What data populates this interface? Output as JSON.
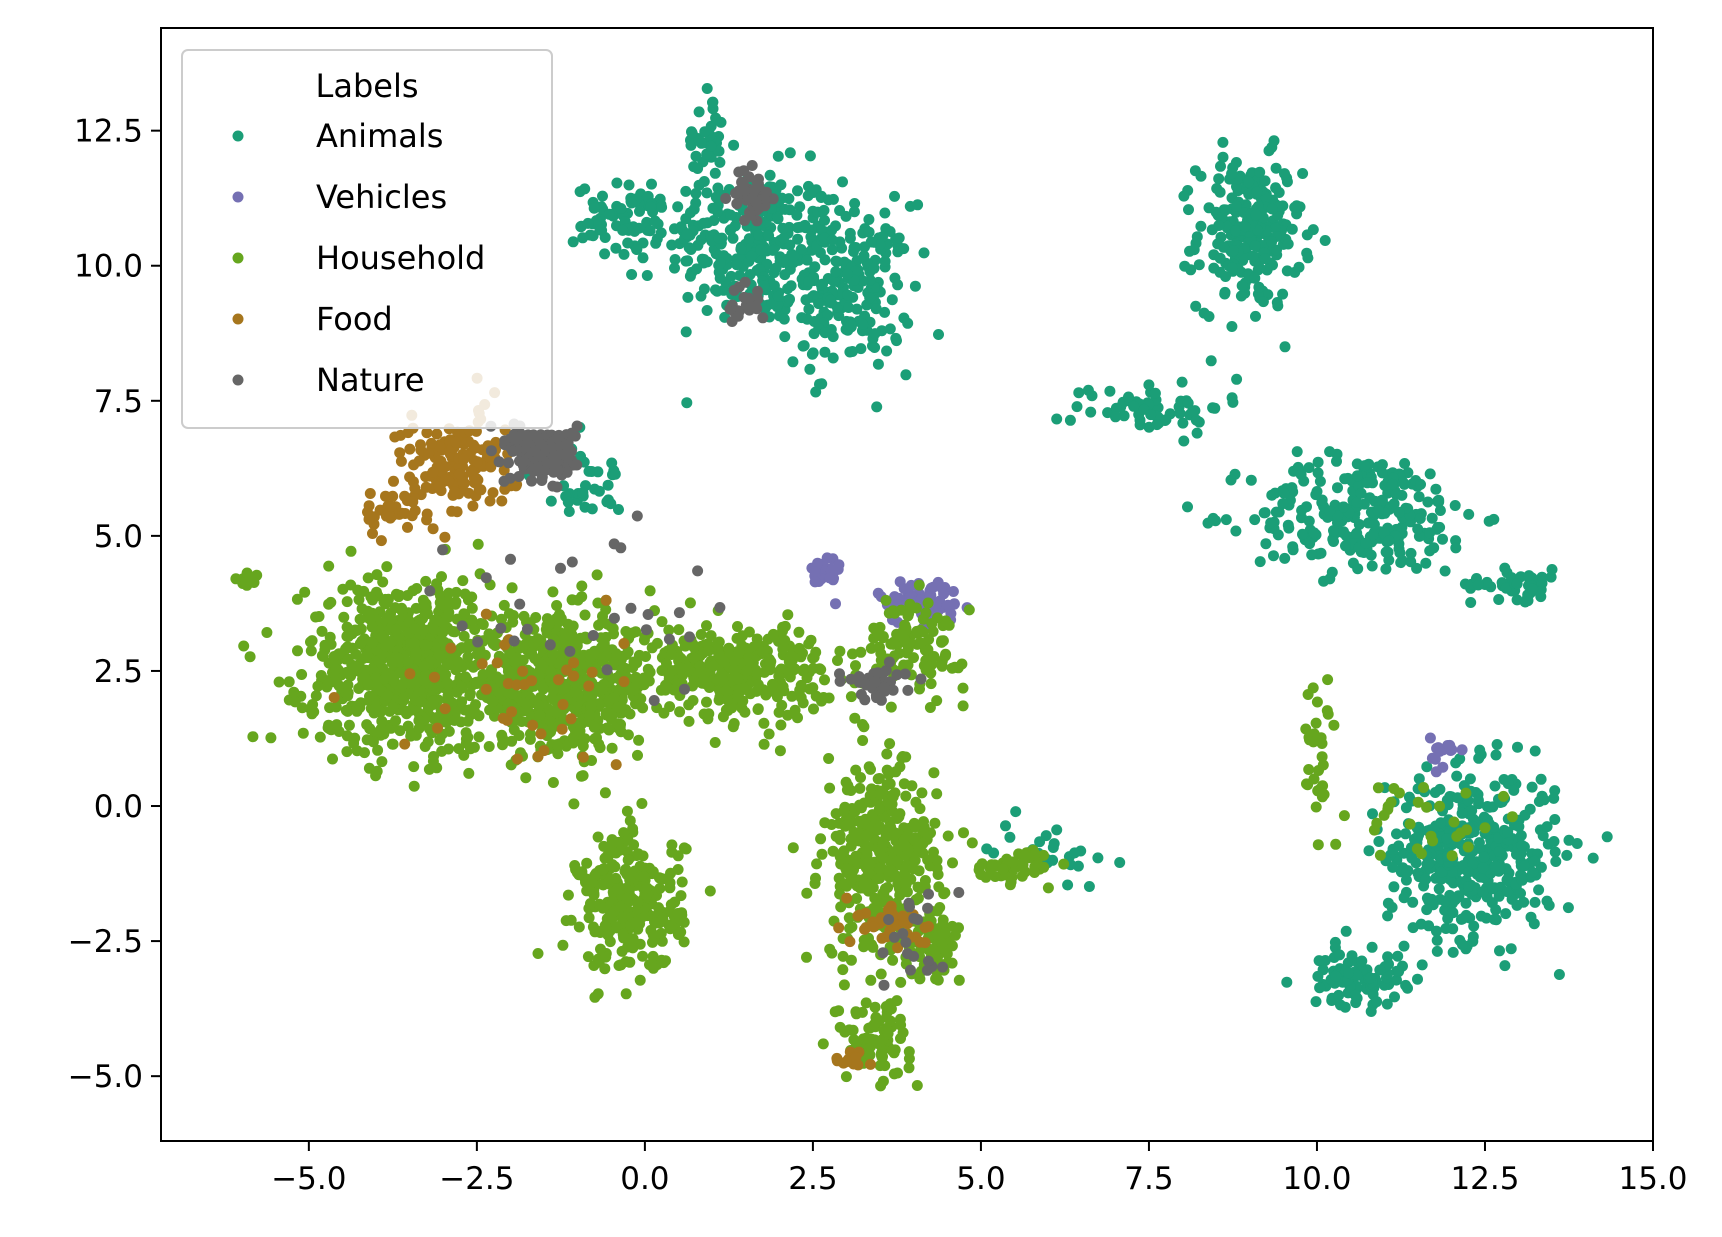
{
  "chart_data": {
    "type": "scatter",
    "title": "",
    "xlabel": "",
    "ylabel": "",
    "xlim": [
      -7.2,
      15.0
    ],
    "ylim": [
      -6.2,
      14.4
    ],
    "grid": false,
    "legend": {
      "title": "Labels",
      "placement": "top-left"
    },
    "x_ticks": [
      {
        "value": -5.0,
        "label": "−5.0"
      },
      {
        "value": -2.5,
        "label": "−2.5"
      },
      {
        "value": 0.0,
        "label": "0.0"
      },
      {
        "value": 2.5,
        "label": "2.5"
      },
      {
        "value": 5.0,
        "label": "5.0"
      },
      {
        "value": 7.5,
        "label": "7.5"
      },
      {
        "value": 10.0,
        "label": "10.0"
      },
      {
        "value": 12.5,
        "label": "12.5"
      },
      {
        "value": 15.0,
        "label": "15.0"
      }
    ],
    "y_ticks": [
      {
        "value": -5.0,
        "label": "−5.0"
      },
      {
        "value": -2.5,
        "label": "−2.5"
      },
      {
        "value": 0.0,
        "label": "0.0"
      },
      {
        "value": 2.5,
        "label": "2.5"
      },
      {
        "value": 5.0,
        "label": "5.0"
      },
      {
        "value": 7.5,
        "label": "7.5"
      },
      {
        "value": 10.0,
        "label": "10.0"
      },
      {
        "value": 12.5,
        "label": "12.5"
      }
    ],
    "series": [
      {
        "name": "Animals",
        "color": "#1b9e77",
        "clusters": [
          {
            "center": [
              1.6,
              10.4
            ],
            "spread": [
              0.9,
              1.0
            ],
            "n": 260
          },
          {
            "center": [
              3.0,
              9.6
            ],
            "spread": [
              0.7,
              1.1
            ],
            "n": 220
          },
          {
            "center": [
              -0.2,
              10.8
            ],
            "spread": [
              0.6,
              0.5
            ],
            "n": 80
          },
          {
            "center": [
              0.9,
              12.3
            ],
            "spread": [
              0.2,
              0.7
            ],
            "n": 40
          },
          {
            "center": [
              9.0,
              10.6
            ],
            "spread": [
              0.55,
              1.0
            ],
            "n": 240
          },
          {
            "center": [
              7.5,
              7.4
            ],
            "spread": [
              0.8,
              0.35
            ],
            "n": 60
          },
          {
            "center": [
              10.7,
              5.4
            ],
            "spread": [
              1.2,
              0.8
            ],
            "n": 260
          },
          {
            "center": [
              13.0,
              4.1
            ],
            "spread": [
              0.5,
              0.2
            ],
            "n": 50
          },
          {
            "center": [
              12.3,
              -0.9
            ],
            "spread": [
              0.9,
              1.1
            ],
            "n": 420
          },
          {
            "center": [
              10.6,
              -3.2
            ],
            "spread": [
              0.5,
              0.35
            ],
            "n": 90
          },
          {
            "center": [
              6.0,
              -0.8
            ],
            "spread": [
              0.6,
              0.4
            ],
            "n": 30
          },
          {
            "center": [
              -1.0,
              6.0
            ],
            "spread": [
              0.5,
              0.5
            ],
            "n": 40
          }
        ]
      },
      {
        "name": "Vehicles",
        "color": "#7570b3",
        "clusters": [
          {
            "center": [
              4.1,
              3.8
            ],
            "spread": [
              0.45,
              0.3
            ],
            "n": 70
          },
          {
            "center": [
              2.7,
              4.3
            ],
            "spread": [
              0.15,
              0.3
            ],
            "n": 25
          },
          {
            "center": [
              11.9,
              1.0
            ],
            "spread": [
              0.15,
              0.2
            ],
            "n": 15
          }
        ]
      },
      {
        "name": "Household",
        "color": "#66a61e",
        "clusters": [
          {
            "center": [
              -3.5,
              2.6
            ],
            "spread": [
              1.1,
              1.1
            ],
            "n": 750
          },
          {
            "center": [
              -1.2,
              2.2
            ],
            "spread": [
              1.0,
              0.9
            ],
            "n": 550
          },
          {
            "center": [
              1.3,
              2.5
            ],
            "spread": [
              1.0,
              0.6
            ],
            "n": 320
          },
          {
            "center": [
              -0.2,
              -1.8
            ],
            "spread": [
              0.55,
              0.9
            ],
            "n": 280
          },
          {
            "center": [
              3.5,
              -1.0
            ],
            "spread": [
              0.6,
              1.3
            ],
            "n": 360
          },
          {
            "center": [
              3.4,
              -4.3
            ],
            "spread": [
              0.4,
              0.5
            ],
            "n": 90
          },
          {
            "center": [
              4.3,
              -2.5
            ],
            "spread": [
              0.3,
              0.5
            ],
            "n": 60
          },
          {
            "center": [
              5.5,
              -1.1
            ],
            "spread": [
              0.45,
              0.2
            ],
            "n": 50
          },
          {
            "center": [
              4.0,
              3.0
            ],
            "spread": [
              0.55,
              0.6
            ],
            "n": 110
          },
          {
            "center": [
              10.0,
              1.0
            ],
            "spread": [
              0.2,
              0.9
            ],
            "n": 30
          },
          {
            "center": [
              11.7,
              -0.3
            ],
            "spread": [
              0.7,
              0.6
            ],
            "n": 30
          },
          {
            "center": [
              -6.0,
              4.2
            ],
            "spread": [
              0.15,
              0.1
            ],
            "n": 12
          }
        ]
      },
      {
        "name": "Food",
        "color": "#a6761d",
        "clusters": [
          {
            "center": [
              -2.8,
              6.3
            ],
            "spread": [
              0.6,
              0.7
            ],
            "n": 150
          },
          {
            "center": [
              -3.9,
              5.5
            ],
            "spread": [
              0.3,
              0.3
            ],
            "n": 30
          },
          {
            "center": [
              -2.0,
              2.0
            ],
            "spread": [
              1.2,
              1.0
            ],
            "n": 40
          },
          {
            "center": [
              3.7,
              -2.2
            ],
            "spread": [
              0.4,
              0.35
            ],
            "n": 40
          },
          {
            "center": [
              3.1,
              -4.7
            ],
            "spread": [
              0.2,
              0.2
            ],
            "n": 12
          }
        ]
      },
      {
        "name": "Nature",
        "color": "#666666",
        "clusters": [
          {
            "center": [
              -1.5,
              6.5
            ],
            "spread": [
              0.35,
              0.35
            ],
            "n": 180
          },
          {
            "center": [
              1.6,
              11.3
            ],
            "spread": [
              0.2,
              0.35
            ],
            "n": 50
          },
          {
            "center": [
              1.5,
              9.3
            ],
            "spread": [
              0.2,
              0.25
            ],
            "n": 25
          },
          {
            "center": [
              3.5,
              2.3
            ],
            "spread": [
              0.35,
              0.25
            ],
            "n": 40
          },
          {
            "center": [
              -1.0,
              3.5
            ],
            "spread": [
              1.3,
              1.3
            ],
            "n": 30
          },
          {
            "center": [
              4.0,
              -2.5
            ],
            "spread": [
              0.35,
              0.7
            ],
            "n": 20
          }
        ]
      }
    ]
  }
}
